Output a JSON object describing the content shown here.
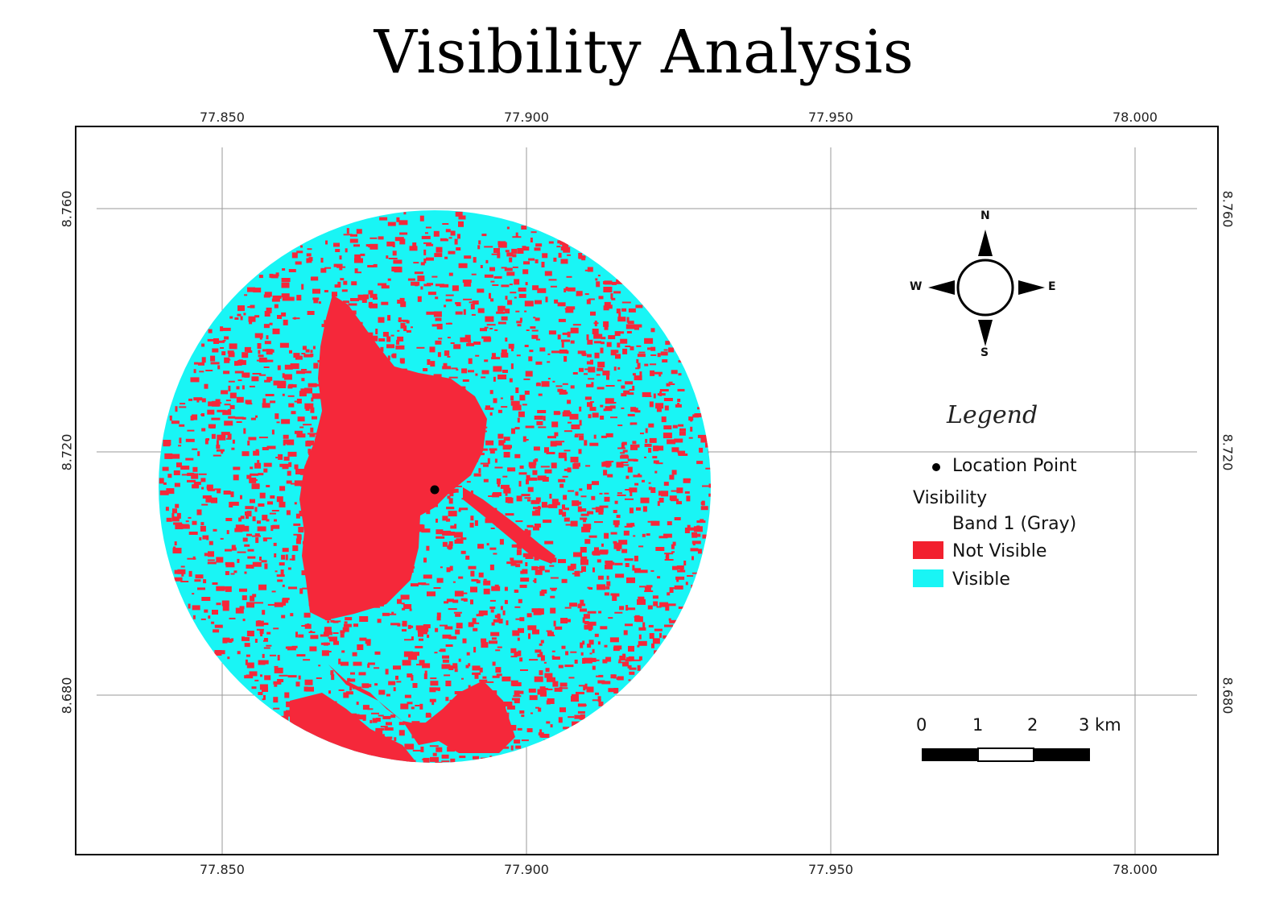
{
  "title": "Visibility Analysis",
  "axes": {
    "x_ticks": [
      "77.850",
      "77.900",
      "77.950",
      "78.000"
    ],
    "y_ticks": [
      "8.760",
      "8.720",
      "8.680"
    ]
  },
  "compass": {
    "n": "N",
    "s": "S",
    "e": "E",
    "w": "W"
  },
  "legend": {
    "title": "Legend",
    "point_label": "Location Point",
    "group_label": "Visibility",
    "band_label": "Band 1 (Gray)",
    "items": [
      {
        "label": "Not Visible",
        "color": "#f2202e"
      },
      {
        "label": "Visible",
        "color": "#19f5f5"
      }
    ]
  },
  "scale_bar": {
    "labels": [
      "0",
      "1",
      "2",
      "3 km"
    ]
  },
  "colors": {
    "not_visible": "#f5283a",
    "visible": "#19f5f5",
    "point": "#000000"
  }
}
